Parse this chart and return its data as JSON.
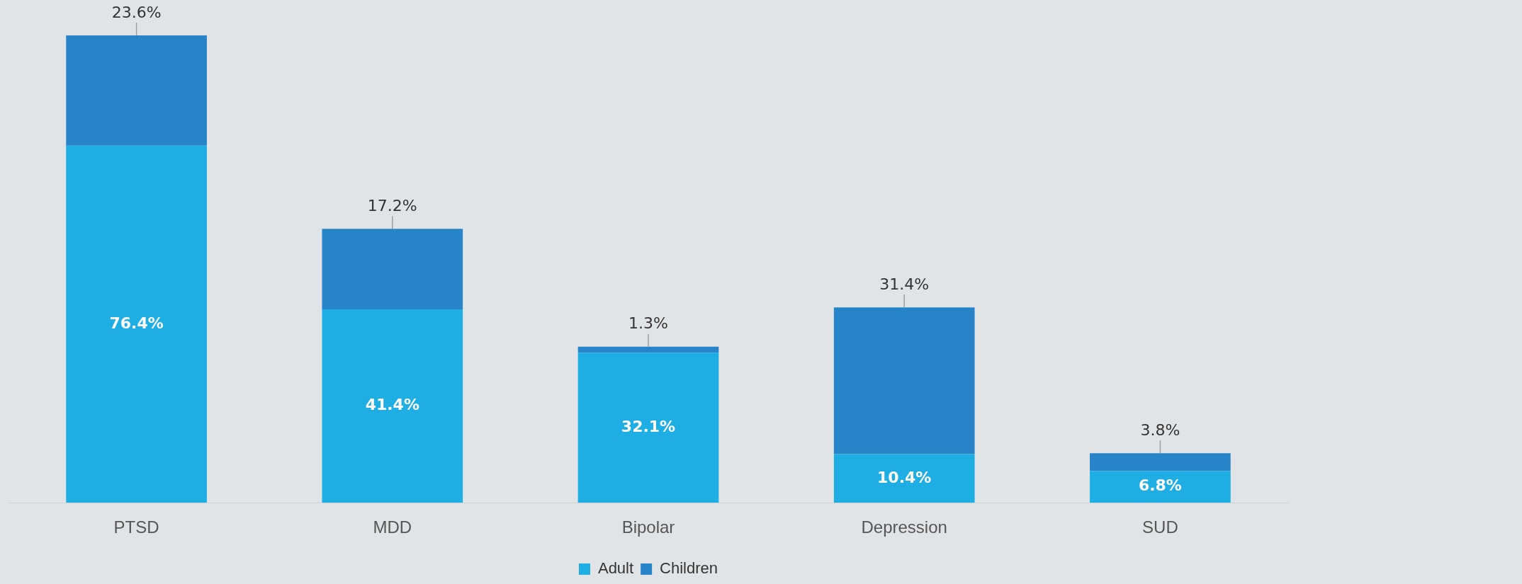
{
  "chart_data": {
    "type": "bar",
    "stacked": true,
    "categories": [
      "PTSD",
      "MDD",
      "Bipolar",
      "Depression",
      "SUD"
    ],
    "series": [
      {
        "name": "Adult",
        "color": "#1eaee3",
        "values": [
          76.4,
          41.4,
          32.1,
          10.4,
          6.8
        ],
        "value_labels": [
          "76.4%",
          "41.4%",
          "32.1%",
          "10.4%",
          "6.8%"
        ]
      },
      {
        "name": "Children",
        "color": "#2884c8",
        "values": [
          23.6,
          17.2,
          1.3,
          31.4,
          3.8
        ],
        "value_labels": [
          "23.6%",
          "17.2%",
          "1.3%",
          "31.4%",
          "3.8%"
        ]
      }
    ],
    "legend": "bottom",
    "grid": false
  }
}
